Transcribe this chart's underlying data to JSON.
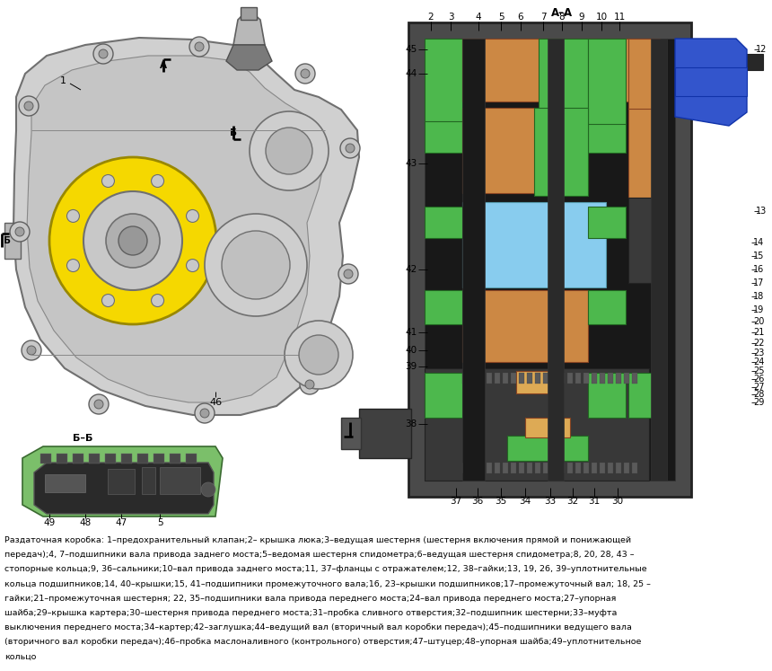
{
  "background_color": "#ffffff",
  "fig_width": 8.6,
  "fig_height": 7.47,
  "dpi": 100,
  "caption_lines": [
    "Раздаточная коробка: 1–предохранительный клапан;2– крышка люка;3–ведущая шестерня (шестерня включения прямой и понижающей",
    "передач);4, 7–подшипники вала привода заднего моста;5–ведомая шестерня спидометра;6–ведущая шестерня спидометра;8, 20, 28, 43 –",
    "стопорные кольца;9, 36–сальники;10–вал привода заднего моста;11, 37–фланцы с отражателем;12, 38–гайки;13, 19, 26, 39–уплотнительные",
    "кольца подшипников;14, 40–крышки;15, 41–подшипники промежуточного вала;16, 23–крышки подшипников;17–промежуточный вал; 18, 25 –",
    "гайки;21–промежуточная шестерня; 22, 35–подшипники вала привода переднего моста;24–вал привода переднего моста;27–упорная",
    "шайба;29–крышка картера;30–шестерня привода переднего моста;31–пробка сливного отверстия;32–подшипник шестерни;33–муфта",
    "выключения переднего моста;34–картер;42–заглушка;44–ведущий вал (вторичный вал коробки передач);45–подшипники ведущего вала",
    "(вторичного вал коробки передач);46–пробка маслоналивного (контрольного) отверстия;47–штуцер;48–упорная шайба;49–уплотнительное",
    "кольцо"
  ]
}
